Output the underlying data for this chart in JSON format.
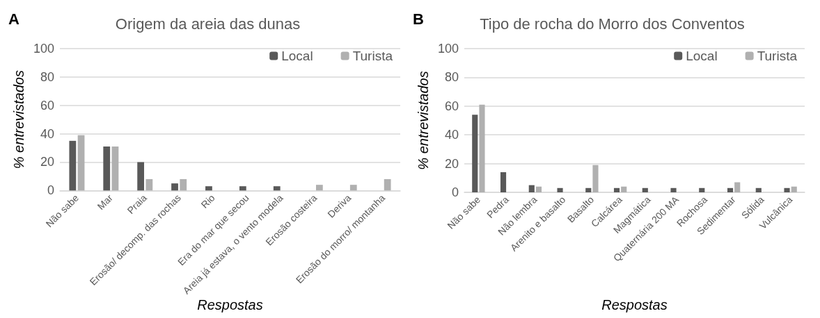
{
  "chart_data": [
    {
      "type": "bar",
      "title": "Origem da areia das dunas",
      "annotations": [
        "A"
      ],
      "xlabel": "Respostas",
      "ylabel": "% entrevistados",
      "categories": [
        "Não sabe",
        "Mar",
        "Praia",
        "Erosão/ decomp. das rochas",
        "Rio",
        "Era do mar que secou",
        "Areia já estava, o vento modela",
        "Erosão costeira",
        "Deriva",
        "Erosão do morro/ montanha"
      ],
      "series": [
        {
          "name": "Local",
          "color": "#595959",
          "values": [
            35,
            31,
            20,
            5,
            3,
            3,
            3,
            0,
            0,
            0
          ]
        },
        {
          "name": "Turista",
          "color": "#b0b0b0",
          "values": [
            39,
            31,
            8,
            8,
            0,
            0,
            0,
            4,
            4,
            8
          ]
        }
      ],
      "ylim": [
        0,
        100
      ],
      "yticks": [
        0,
        20,
        40,
        60,
        80,
        100
      ],
      "grid": "y",
      "legend": "top right"
    },
    {
      "type": "bar",
      "title": "Tipo de rocha do Morro dos Conventos",
      "annotations": [
        "B"
      ],
      "xlabel": "Respostas",
      "ylabel": "% entrevistados",
      "categories": [
        "Não sabe",
        "Pedra",
        "Não lembra",
        "Arenito e basalto",
        "Basalto",
        "Calcárea",
        "Magmática",
        "Quaternária 200 MA",
        "Rochosa",
        "Sedimentar",
        "Sólida",
        "Vulcânica"
      ],
      "series": [
        {
          "name": "Local",
          "color": "#595959",
          "values": [
            54,
            14,
            5,
            3,
            3,
            3,
            3,
            3,
            3,
            3,
            3,
            3
          ]
        },
        {
          "name": "Turista",
          "color": "#b0b0b0",
          "values": [
            61,
            0,
            4,
            0,
            19,
            4,
            0,
            0,
            0,
            7,
            0,
            4
          ]
        }
      ],
      "ylim": [
        0,
        100
      ],
      "yticks": [
        0,
        20,
        40,
        60,
        80,
        100
      ],
      "grid": "y",
      "legend": "top right"
    }
  ]
}
